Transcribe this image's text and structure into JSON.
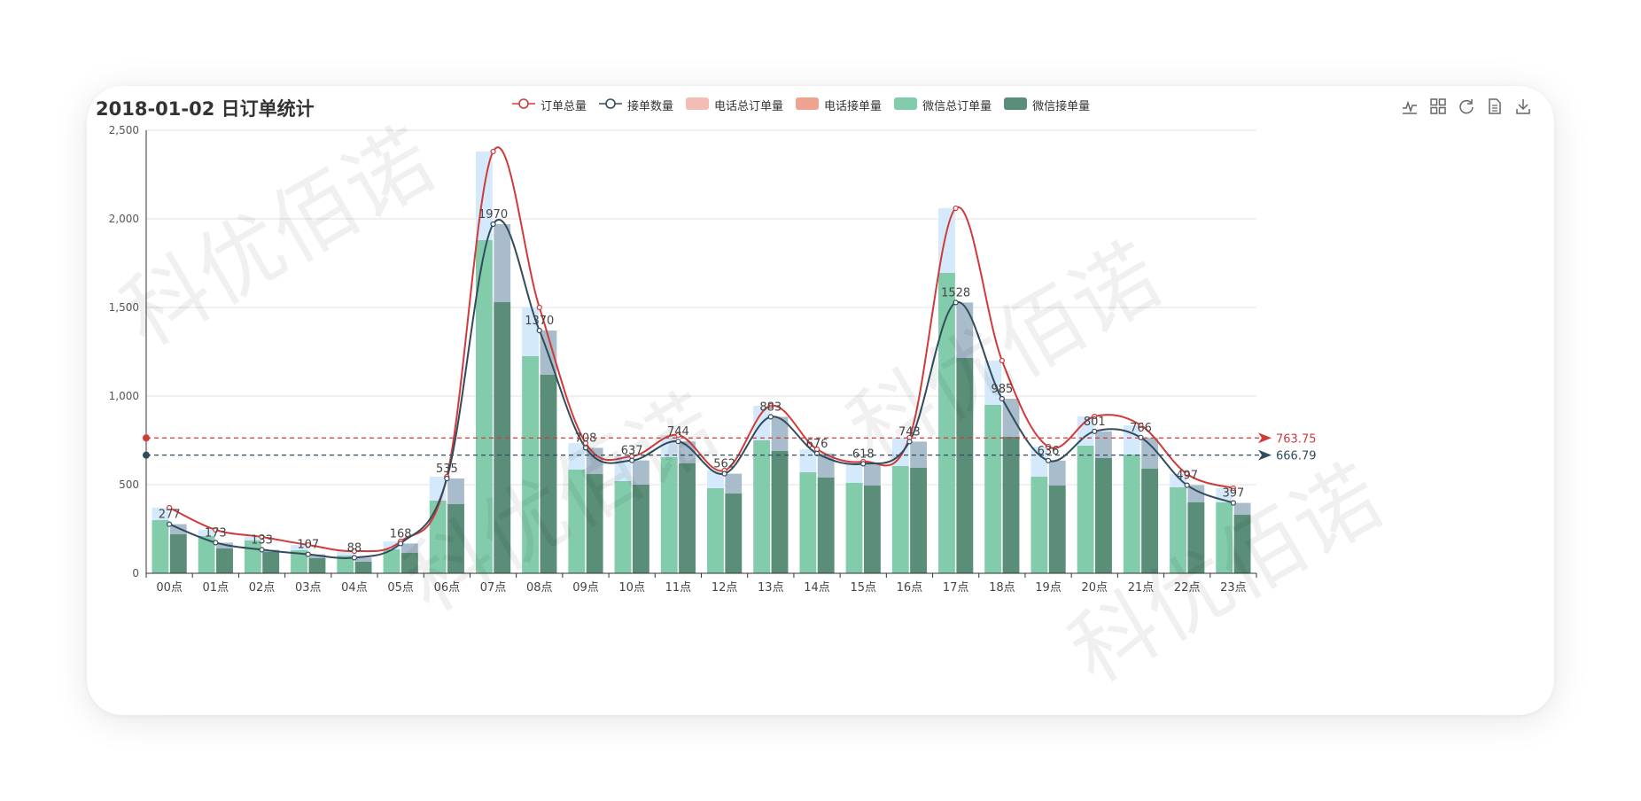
{
  "title": "2018-01-02 日订单统计",
  "watermark": "科优佰诺",
  "legend": [
    {
      "name": "订单总量",
      "kind": "line",
      "color": "#d23a3a"
    },
    {
      "name": "接单数量",
      "kind": "line",
      "color": "#324c5b"
    },
    {
      "name": "电话总订单量",
      "kind": "box",
      "color": "#f3bcb4"
    },
    {
      "name": "电话接单量",
      "kind": "box",
      "color": "#eea391"
    },
    {
      "name": "微信总订单量",
      "kind": "box",
      "color": "#82cbab"
    },
    {
      "name": "微信接单量",
      "kind": "box",
      "color": "#5a8e78"
    }
  ],
  "toolbox": [
    "line-chart-icon",
    "grid-icon",
    "refresh-icon",
    "data-view-icon",
    "download-icon"
  ],
  "chart_data": {
    "type": "bar",
    "title": "2018-01-02 日订单统计",
    "categories": [
      "00点",
      "01点",
      "02点",
      "03点",
      "04点",
      "05点",
      "06点",
      "07点",
      "08点",
      "09点",
      "10点",
      "11点",
      "12点",
      "13点",
      "14点",
      "15点",
      "16点",
      "17点",
      "18点",
      "19点",
      "20点",
      "21点",
      "22点",
      "23点"
    ],
    "ylim": [
      0,
      2500
    ],
    "yticks": [
      0,
      500,
      1000,
      1500,
      2000,
      2500
    ],
    "ytick_labels": [
      "0",
      "500",
      "1,000",
      "1,500",
      "2,000",
      "2,500"
    ],
    "grid": true,
    "legend_position": "top",
    "colors": {
      "total_bg": "#d4e9fb",
      "accepted_bg": "#a8bccb",
      "wechat_total": "#82cbab",
      "wechat_accepted": "#5a8e78",
      "line_total": "#d23a3a",
      "line_accepted": "#324c5b"
    },
    "series": [
      {
        "name": "订单总量",
        "type": "line",
        "values": [
          370,
          245,
          205,
          160,
          125,
          180,
          545,
          2380,
          1500,
          735,
          660,
          780,
          580,
          945,
          700,
          630,
          765,
          2060,
          1200,
          715,
          885,
          835,
          560,
          480
        ]
      },
      {
        "name": "接单数量",
        "type": "line",
        "values": [
          277,
          173,
          133,
          107,
          88,
          168,
          535,
          1970,
          1370,
          708,
          637,
          744,
          562,
          883,
          676,
          618,
          743,
          1528,
          985,
          636,
          801,
          766,
          497,
          397
        ]
      },
      {
        "name": "微信总订单量",
        "type": "bar",
        "values": [
          300,
          210,
          185,
          130,
          100,
          135,
          410,
          1880,
          1225,
          585,
          520,
          655,
          480,
          750,
          570,
          510,
          605,
          1695,
          950,
          545,
          720,
          670,
          485,
          400
        ]
      },
      {
        "name": "微信接单量",
        "type": "bar",
        "values": [
          220,
          140,
          120,
          85,
          65,
          115,
          390,
          1530,
          1120,
          560,
          500,
          620,
          450,
          690,
          540,
          495,
          595,
          1215,
          770,
          495,
          650,
          590,
          400,
          330
        ]
      }
    ],
    "point_labels": [
      "277",
      "173",
      "133",
      "107",
      "88",
      "168",
      "535",
      "1970",
      "1370",
      "708",
      "637",
      "744",
      "562",
      "883",
      "676",
      "618",
      "743",
      "1528",
      "985",
      "636",
      "801",
      "766",
      "497",
      "397"
    ],
    "mark_lines": [
      {
        "series": "订单总量",
        "value": 763.75,
        "label": "763.75",
        "color": "#d23a3a"
      },
      {
        "series": "接单数量",
        "value": 666.79,
        "label": "666.79",
        "color": "#324c5b"
      }
    ]
  }
}
